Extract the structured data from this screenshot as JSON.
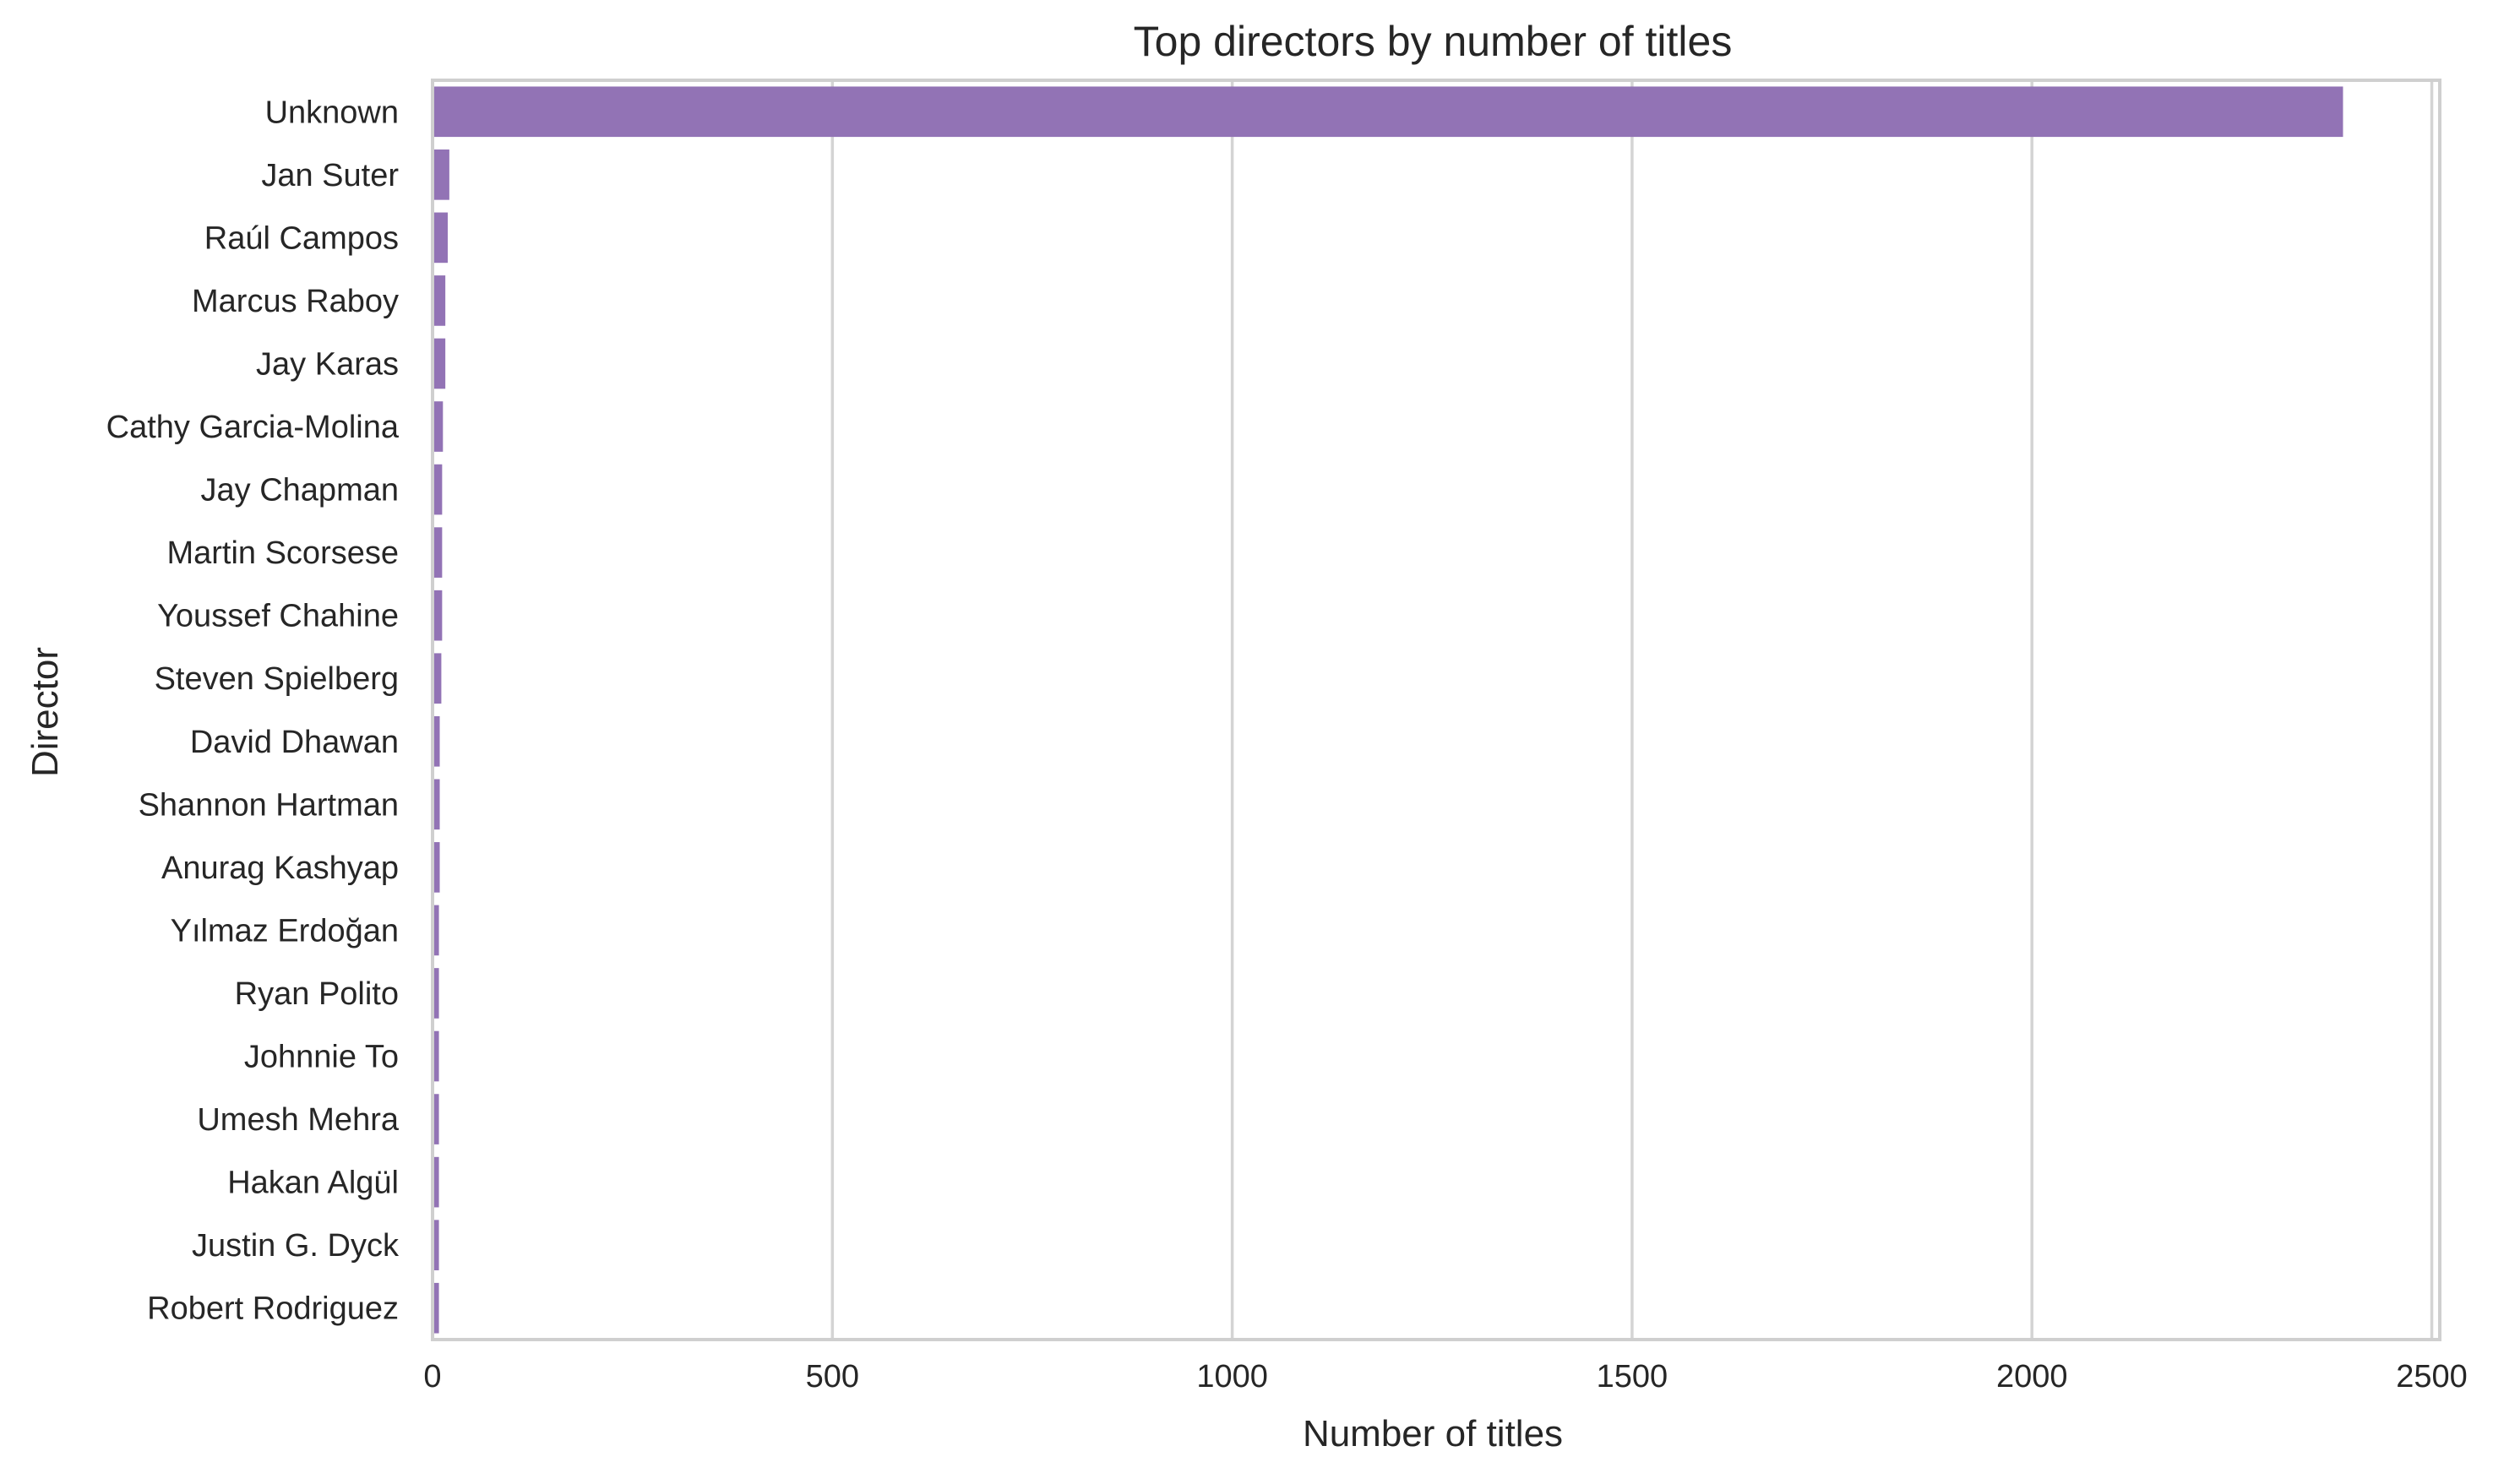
{
  "chart_data": {
    "type": "bar",
    "orientation": "horizontal",
    "title": "Top directors by number of titles",
    "xlabel": "Number of titles",
    "ylabel": "Director",
    "xlim": [
      0,
      2510
    ],
    "xticks": [
      0,
      500,
      1000,
      1500,
      2000,
      2500
    ],
    "grid": "x",
    "bar_color": "#9273b5",
    "categories": [
      "Unknown",
      "Jan Suter",
      "Raúl Campos",
      "Marcus Raboy",
      "Jay Karas",
      "Cathy Garcia-Molina",
      "Jay Chapman",
      "Martin Scorsese",
      "Youssef Chahine",
      "Steven Spielberg",
      "David Dhawan",
      "Shannon Hartman",
      "Anurag Kashyap",
      "Yılmaz Erdoğan",
      "Ryan Polito",
      "Johnnie To",
      "Umesh Mehra",
      "Hakan Algül",
      "Justin G. Dyck",
      "Robert Rodriguez"
    ],
    "values": [
      2389,
      21,
      19,
      16,
      16,
      13,
      12,
      12,
      12,
      11,
      9,
      9,
      9,
      8,
      8,
      8,
      8,
      8,
      8,
      8
    ]
  }
}
